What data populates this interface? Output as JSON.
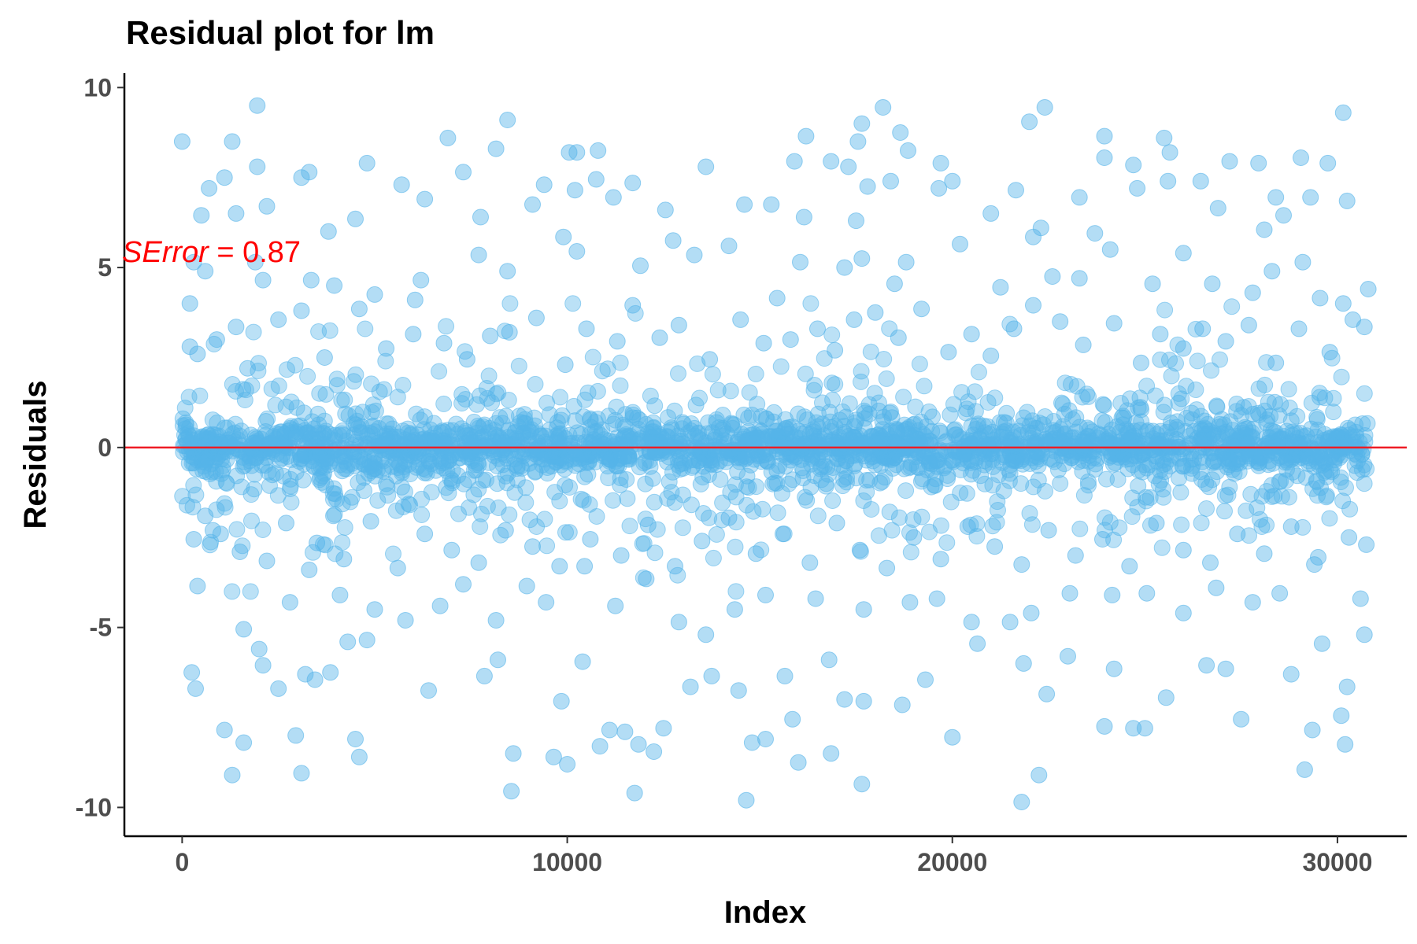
{
  "chart_data": {
    "type": "scatter",
    "title": "Residual plot for lm",
    "xlabel": "Index",
    "ylabel": "Residuals",
    "xlim": [
      -1500,
      31800
    ],
    "ylim": [
      -10.8,
      10.4
    ],
    "x_ticks": [
      0,
      10000,
      20000,
      30000
    ],
    "x_tick_labels": [
      "0",
      "10000",
      "20000",
      "30000"
    ],
    "y_ticks": [
      10,
      5,
      0,
      -5,
      -10
    ],
    "y_tick_labels": [
      "10",
      "5",
      "0",
      "-5",
      "-10"
    ],
    "grid": false,
    "legend": "none",
    "reference_line": {
      "y": 0,
      "color": "#ee1c25"
    },
    "annotation": {
      "variable": "SError",
      "operator": " = ",
      "value": "0.87",
      "color": "#ff0000"
    },
    "point_color": "#56b4e9",
    "n_points_approx": 30800,
    "points": [
      [
        0,
        8.5
      ],
      [
        1950,
        9.5
      ],
      [
        8450,
        9.1
      ],
      [
        10050,
        8.2
      ],
      [
        10250,
        8.2
      ],
      [
        10800,
        8.25
      ],
      [
        6900,
        8.6
      ],
      [
        8150,
        8.3
      ],
      [
        16200,
        8.65
      ],
      [
        17550,
        8.5
      ],
      [
        17650,
        9.0
      ],
      [
        18200,
        9.45
      ],
      [
        18650,
        8.75
      ],
      [
        18850,
        8.25
      ],
      [
        22000,
        9.05
      ],
      [
        22400,
        9.45
      ],
      [
        23950,
        8.65
      ],
      [
        25500,
        8.6
      ],
      [
        25650,
        8.2
      ],
      [
        27200,
        7.95
      ],
      [
        27950,
        7.9
      ],
      [
        29050,
        8.05
      ],
      [
        29750,
        7.9
      ],
      [
        30150,
        9.3
      ],
      [
        1300,
        8.5
      ],
      [
        700,
        7.2
      ],
      [
        1100,
        7.5
      ],
      [
        1950,
        7.8
      ],
      [
        3100,
        7.5
      ],
      [
        3300,
        7.65
      ],
      [
        4800,
        7.9
      ],
      [
        7300,
        7.65
      ],
      [
        9400,
        7.3
      ],
      [
        10200,
        7.15
      ],
      [
        10750,
        7.45
      ],
      [
        11700,
        7.35
      ],
      [
        13600,
        7.8
      ],
      [
        15900,
        7.95
      ],
      [
        16850,
        7.95
      ],
      [
        17300,
        7.8
      ],
      [
        17800,
        7.25
      ],
      [
        18400,
        7.4
      ],
      [
        19700,
        7.9
      ],
      [
        19650,
        7.2
      ],
      [
        20000,
        7.4
      ],
      [
        21650,
        7.15
      ],
      [
        23300,
        6.95
      ],
      [
        23950,
        8.05
      ],
      [
        24700,
        7.85
      ],
      [
        24800,
        7.2
      ],
      [
        25600,
        7.4
      ],
      [
        26450,
        7.4
      ],
      [
        26900,
        6.65
      ],
      [
        28400,
        6.95
      ],
      [
        29300,
        6.95
      ],
      [
        30250,
        6.85
      ],
      [
        200,
        4.0
      ],
      [
        500,
        6.45
      ],
      [
        1400,
        6.5
      ],
      [
        2200,
        6.7
      ],
      [
        3800,
        6.0
      ],
      [
        5700,
        7.3
      ],
      [
        6300,
        6.9
      ],
      [
        7750,
        6.4
      ],
      [
        9100,
        6.75
      ],
      [
        11200,
        6.95
      ],
      [
        12550,
        6.6
      ],
      [
        14600,
        6.75
      ],
      [
        15300,
        6.75
      ],
      [
        16150,
        6.4
      ],
      [
        17500,
        6.3
      ],
      [
        21000,
        6.5
      ],
      [
        22100,
        5.85
      ],
      [
        22300,
        6.1
      ],
      [
        23700,
        5.95
      ],
      [
        26000,
        5.4
      ],
      [
        28100,
        6.05
      ],
      [
        28600,
        6.45
      ],
      [
        29100,
        5.15
      ],
      [
        30800,
        4.4
      ],
      [
        300,
        5.15
      ],
      [
        600,
        4.9
      ],
      [
        1900,
        5.15
      ],
      [
        2100,
        4.65
      ],
      [
        3350,
        4.65
      ],
      [
        3950,
        4.5
      ],
      [
        4500,
        6.35
      ],
      [
        5000,
        4.25
      ],
      [
        6050,
        4.1
      ],
      [
        6200,
        4.65
      ],
      [
        7700,
        5.35
      ],
      [
        8450,
        4.9
      ],
      [
        9900,
        5.85
      ],
      [
        10250,
        5.45
      ],
      [
        11900,
        5.05
      ],
      [
        12750,
        5.75
      ],
      [
        13300,
        5.35
      ],
      [
        14200,
        5.6
      ],
      [
        15450,
        4.15
      ],
      [
        16050,
        5.15
      ],
      [
        17200,
        5.0
      ],
      [
        17650,
        5.25
      ],
      [
        18500,
        4.55
      ],
      [
        18800,
        5.15
      ],
      [
        20200,
        5.65
      ],
      [
        21250,
        4.45
      ],
      [
        22600,
        4.75
      ],
      [
        23300,
        4.7
      ],
      [
        24100,
        5.5
      ],
      [
        25200,
        4.55
      ],
      [
        26750,
        4.55
      ],
      [
        27800,
        4.3
      ],
      [
        28300,
        4.9
      ],
      [
        29550,
        4.15
      ],
      [
        30150,
        4.0
      ],
      [
        30700,
        3.35
      ],
      [
        250,
        -6.25
      ],
      [
        350,
        -6.7
      ],
      [
        1100,
        -7.85
      ],
      [
        1300,
        -9.1
      ],
      [
        1600,
        -8.2
      ],
      [
        3100,
        -9.05
      ],
      [
        2950,
        -8.0
      ],
      [
        4500,
        -8.1
      ],
      [
        4600,
        -8.6
      ],
      [
        8600,
        -8.5
      ],
      [
        8550,
        -9.55
      ],
      [
        9650,
        -8.6
      ],
      [
        10000,
        -8.8
      ],
      [
        10850,
        -8.3
      ],
      [
        11750,
        -9.6
      ],
      [
        11850,
        -8.25
      ],
      [
        12250,
        -8.45
      ],
      [
        14650,
        -9.8
      ],
      [
        14800,
        -8.2
      ],
      [
        15150,
        -8.1
      ],
      [
        16000,
        -8.75
      ],
      [
        16850,
        -8.5
      ],
      [
        17650,
        -9.35
      ],
      [
        20000,
        -8.05
      ],
      [
        21800,
        -9.85
      ],
      [
        22250,
        -9.1
      ],
      [
        23950,
        -7.75
      ],
      [
        24700,
        -7.8
      ],
      [
        25000,
        -7.8
      ],
      [
        27500,
        -7.55
      ],
      [
        29150,
        -8.95
      ],
      [
        30200,
        -8.25
      ],
      [
        29350,
        -7.85
      ],
      [
        30100,
        -7.45
      ],
      [
        2100,
        -6.05
      ],
      [
        2500,
        -6.7
      ],
      [
        3200,
        -6.3
      ],
      [
        3450,
        -6.45
      ],
      [
        3850,
        -6.25
      ],
      [
        4300,
        -5.4
      ],
      [
        4800,
        -5.35
      ],
      [
        6400,
        -6.75
      ],
      [
        7850,
        -6.35
      ],
      [
        8200,
        -5.9
      ],
      [
        9850,
        -7.05
      ],
      [
        10400,
        -5.95
      ],
      [
        11100,
        -7.85
      ],
      [
        11500,
        -7.9
      ],
      [
        12500,
        -7.8
      ],
      [
        13200,
        -6.65
      ],
      [
        13750,
        -6.35
      ],
      [
        14450,
        -6.75
      ],
      [
        15650,
        -6.35
      ],
      [
        15850,
        -7.55
      ],
      [
        16800,
        -5.9
      ],
      [
        17200,
        -7.0
      ],
      [
        17700,
        -7.05
      ],
      [
        18700,
        -7.15
      ],
      [
        19300,
        -6.45
      ],
      [
        20650,
        -5.45
      ],
      [
        21850,
        -6.0
      ],
      [
        22450,
        -6.85
      ],
      [
        23000,
        -5.8
      ],
      [
        24200,
        -6.15
      ],
      [
        25550,
        -6.95
      ],
      [
        26600,
        -6.05
      ],
      [
        27100,
        -6.15
      ],
      [
        28800,
        -6.3
      ],
      [
        29600,
        -5.45
      ],
      [
        30250,
        -6.65
      ],
      [
        30700,
        -5.2
      ],
      [
        400,
        -3.85
      ],
      [
        800,
        -2.3
      ],
      [
        1600,
        -5.05
      ],
      [
        2000,
        -5.6
      ],
      [
        2800,
        -4.3
      ],
      [
        3300,
        -3.4
      ],
      [
        4100,
        -4.1
      ],
      [
        5000,
        -4.5
      ],
      [
        5800,
        -4.8
      ],
      [
        6700,
        -4.4
      ],
      [
        7300,
        -3.8
      ],
      [
        8150,
        -4.8
      ],
      [
        8950,
        -3.85
      ],
      [
        9450,
        -4.3
      ],
      [
        10450,
        -3.3
      ],
      [
        11250,
        -4.4
      ],
      [
        12050,
        -3.65
      ],
      [
        12900,
        -4.85
      ],
      [
        13600,
        -5.2
      ],
      [
        14350,
        -4.5
      ],
      [
        15150,
        -4.1
      ],
      [
        16450,
        -4.2
      ],
      [
        17700,
        -4.5
      ],
      [
        18900,
        -4.3
      ],
      [
        19600,
        -4.2
      ],
      [
        20500,
        -4.85
      ],
      [
        21500,
        -4.85
      ],
      [
        22050,
        -4.6
      ],
      [
        23050,
        -4.05
      ],
      [
        24150,
        -4.1
      ],
      [
        25050,
        -4.05
      ],
      [
        26000,
        -4.6
      ],
      [
        26850,
        -3.9
      ],
      [
        27800,
        -4.3
      ],
      [
        28500,
        -4.05
      ],
      [
        29400,
        -3.25
      ],
      [
        30600,
        -4.2
      ],
      [
        200,
        2.8
      ],
      [
        400,
        2.6
      ],
      [
        900,
        3.0
      ],
      [
        1400,
        3.35
      ],
      [
        1700,
        2.2
      ],
      [
        2500,
        3.55
      ],
      [
        3100,
        3.8
      ],
      [
        3700,
        2.5
      ],
      [
        4600,
        3.85
      ],
      [
        5300,
        2.75
      ],
      [
        6000,
        3.15
      ],
      [
        6800,
        2.9
      ],
      [
        7400,
        2.45
      ],
      [
        8000,
        3.1
      ],
      [
        8500,
        3.2
      ],
      [
        9200,
        3.6
      ],
      [
        9950,
        2.3
      ],
      [
        10500,
        3.3
      ],
      [
        11300,
        2.95
      ],
      [
        11700,
        3.95
      ],
      [
        12400,
        3.05
      ],
      [
        12900,
        3.4
      ],
      [
        13700,
        2.45
      ],
      [
        14500,
        3.55
      ],
      [
        15100,
        2.9
      ],
      [
        15800,
        3.0
      ],
      [
        16500,
        3.3
      ],
      [
        16950,
        2.7
      ],
      [
        17450,
        3.55
      ],
      [
        18000,
        3.75
      ],
      [
        18600,
        3.05
      ],
      [
        19200,
        3.85
      ],
      [
        19900,
        2.65
      ],
      [
        20500,
        3.15
      ],
      [
        21000,
        2.55
      ],
      [
        21600,
        3.3
      ],
      [
        22100,
        3.95
      ],
      [
        22800,
        3.5
      ],
      [
        23400,
        2.85
      ],
      [
        24200,
        3.45
      ],
      [
        24900,
        2.35
      ],
      [
        25400,
        3.15
      ],
      [
        26000,
        2.75
      ],
      [
        26500,
        3.3
      ],
      [
        27100,
        2.95
      ],
      [
        27700,
        3.4
      ],
      [
        28400,
        2.35
      ],
      [
        29000,
        3.3
      ],
      [
        29800,
        2.65
      ],
      [
        30400,
        3.55
      ],
      [
        300,
        -2.55
      ],
      [
        600,
        -1.9
      ],
      [
        1000,
        -2.4
      ],
      [
        1500,
        -2.9
      ],
      [
        2200,
        -3.15
      ],
      [
        2700,
        -2.1
      ],
      [
        3500,
        -2.65
      ],
      [
        4200,
        -3.1
      ],
      [
        4900,
        -2.05
      ],
      [
        5600,
        -3.35
      ],
      [
        6300,
        -2.4
      ],
      [
        7000,
        -2.85
      ],
      [
        7700,
        -3.2
      ],
      [
        8400,
        -2.3
      ],
      [
        9100,
        -2.75
      ],
      [
        9800,
        -3.3
      ],
      [
        10600,
        -2.55
      ],
      [
        11400,
        -3.0
      ],
      [
        12100,
        -2.15
      ],
      [
        12800,
        -3.3
      ],
      [
        13500,
        -2.6
      ],
      [
        14200,
        -1.95
      ],
      [
        14900,
        -2.95
      ],
      [
        15600,
        -2.4
      ],
      [
        16300,
        -3.2
      ],
      [
        17000,
        -2.1
      ],
      [
        17600,
        -2.85
      ],
      [
        18300,
        -3.35
      ],
      [
        19000,
        -2.5
      ],
      [
        19700,
        -3.1
      ],
      [
        20400,
        -2.2
      ],
      [
        21100,
        -2.75
      ],
      [
        21800,
        -3.25
      ],
      [
        22500,
        -2.3
      ],
      [
        23200,
        -3.0
      ],
      [
        23900,
        -2.55
      ],
      [
        24600,
        -3.3
      ],
      [
        25300,
        -2.1
      ],
      [
        26000,
        -2.85
      ],
      [
        26700,
        -3.2
      ],
      [
        27400,
        -2.4
      ],
      [
        28100,
        -2.95
      ],
      [
        28800,
        -2.2
      ],
      [
        29500,
        -3.05
      ],
      [
        30300,
        -2.5
      ],
      [
        30750,
        -2.7
      ]
    ]
  }
}
